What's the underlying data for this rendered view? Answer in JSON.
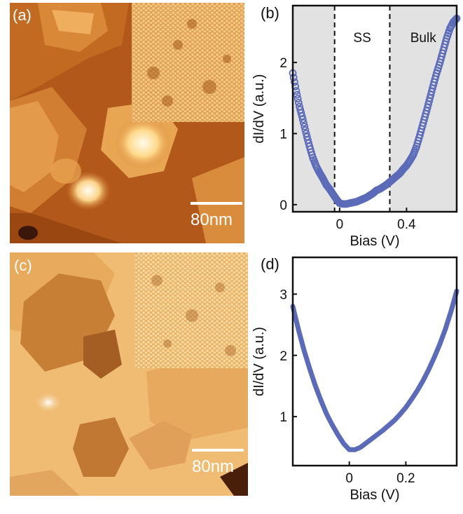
{
  "panels": {
    "a": {
      "label": "(a)",
      "scale_bar": "80nm"
    },
    "b": {
      "label": "(b)"
    },
    "c": {
      "label": "(c)",
      "scale_bar": "80nm"
    },
    "d": {
      "label": "(d)"
    }
  },
  "colors": {
    "series": "#5b6bb8",
    "shade": "#e2e2e2",
    "stm_dark": "#8a3a0a",
    "stm_light": "#f2c27a",
    "stm_bright": "#fff8e6"
  },
  "chart_data": [
    {
      "id": "b",
      "type": "scatter",
      "marker": "open-circle",
      "xlabel": "Bias (V)",
      "ylabel": "dI/dV (a.u.)",
      "xlim": [
        -0.28,
        0.7
      ],
      "ylim": [
        -0.1,
        2.8
      ],
      "xticks": [
        0,
        0.4
      ],
      "xtick_labels": [
        "0",
        "0.4"
      ],
      "yticks": [
        0,
        1,
        2
      ],
      "ytick_labels": [
        "0",
        "1",
        "2"
      ],
      "vlines": [
        -0.03,
        0.3
      ],
      "regions": [
        {
          "label": "",
          "from": -0.28,
          "to": -0.03,
          "shaded": true
        },
        {
          "label": "SS",
          "from": -0.03,
          "to": 0.3,
          "shaded": false
        },
        {
          "label": "Bulk",
          "from": 0.3,
          "to": 0.7,
          "shaded": true
        }
      ],
      "series": [
        {
          "x": [
            -0.28,
            -0.26,
            -0.24,
            -0.22,
            -0.2,
            -0.18,
            -0.16,
            -0.14,
            -0.12,
            -0.1,
            -0.08,
            -0.06,
            -0.04,
            -0.02,
            0.0,
            0.02,
            0.04,
            0.06,
            0.08,
            0.1,
            0.12,
            0.14,
            0.16,
            0.18,
            0.2,
            0.22,
            0.24,
            0.26,
            0.28,
            0.3,
            0.32,
            0.34,
            0.36,
            0.38,
            0.4,
            0.42,
            0.44,
            0.46,
            0.48,
            0.5,
            0.52,
            0.54,
            0.56,
            0.58,
            0.6,
            0.62,
            0.64,
            0.66,
            0.68,
            0.7
          ],
          "y": [
            1.85,
            1.6,
            1.38,
            1.2,
            1.0,
            0.82,
            0.66,
            0.54,
            0.45,
            0.37,
            0.28,
            0.22,
            0.15,
            0.08,
            0.02,
            0.01,
            0.01,
            0.02,
            0.03,
            0.04,
            0.06,
            0.08,
            0.1,
            0.13,
            0.16,
            0.2,
            0.22,
            0.25,
            0.28,
            0.32,
            0.36,
            0.4,
            0.44,
            0.5,
            0.55,
            0.62,
            0.7,
            0.82,
            0.98,
            1.15,
            1.32,
            1.5,
            1.68,
            1.85,
            2.0,
            2.17,
            2.34,
            2.48,
            2.57,
            2.62
          ]
        }
      ]
    },
    {
      "id": "d",
      "type": "line",
      "xlabel": "Bias (V)",
      "ylabel": "dI/dV (a.u.)",
      "xlim": [
        -0.2,
        0.38
      ],
      "ylim": [
        0.2,
        3.6
      ],
      "xticks": [
        0,
        0.2
      ],
      "xtick_labels": [
        "0",
        "0.2"
      ],
      "yticks": [
        1,
        2,
        3
      ],
      "ytick_labels": [
        "1",
        "2",
        "3"
      ],
      "series": [
        {
          "x": [
            -0.2,
            -0.18,
            -0.16,
            -0.14,
            -0.12,
            -0.1,
            -0.08,
            -0.06,
            -0.04,
            -0.02,
            0.0,
            0.02,
            0.04,
            0.06,
            0.08,
            0.1,
            0.12,
            0.14,
            0.16,
            0.18,
            0.2,
            0.22,
            0.24,
            0.26,
            0.28,
            0.3,
            0.32,
            0.34,
            0.36,
            0.38
          ],
          "y": [
            2.8,
            2.42,
            2.08,
            1.78,
            1.5,
            1.26,
            1.04,
            0.86,
            0.7,
            0.56,
            0.46,
            0.46,
            0.5,
            0.57,
            0.64,
            0.71,
            0.78,
            0.86,
            0.94,
            1.04,
            1.15,
            1.28,
            1.42,
            1.58,
            1.76,
            1.96,
            2.18,
            2.43,
            2.72,
            3.05
          ]
        }
      ]
    }
  ]
}
